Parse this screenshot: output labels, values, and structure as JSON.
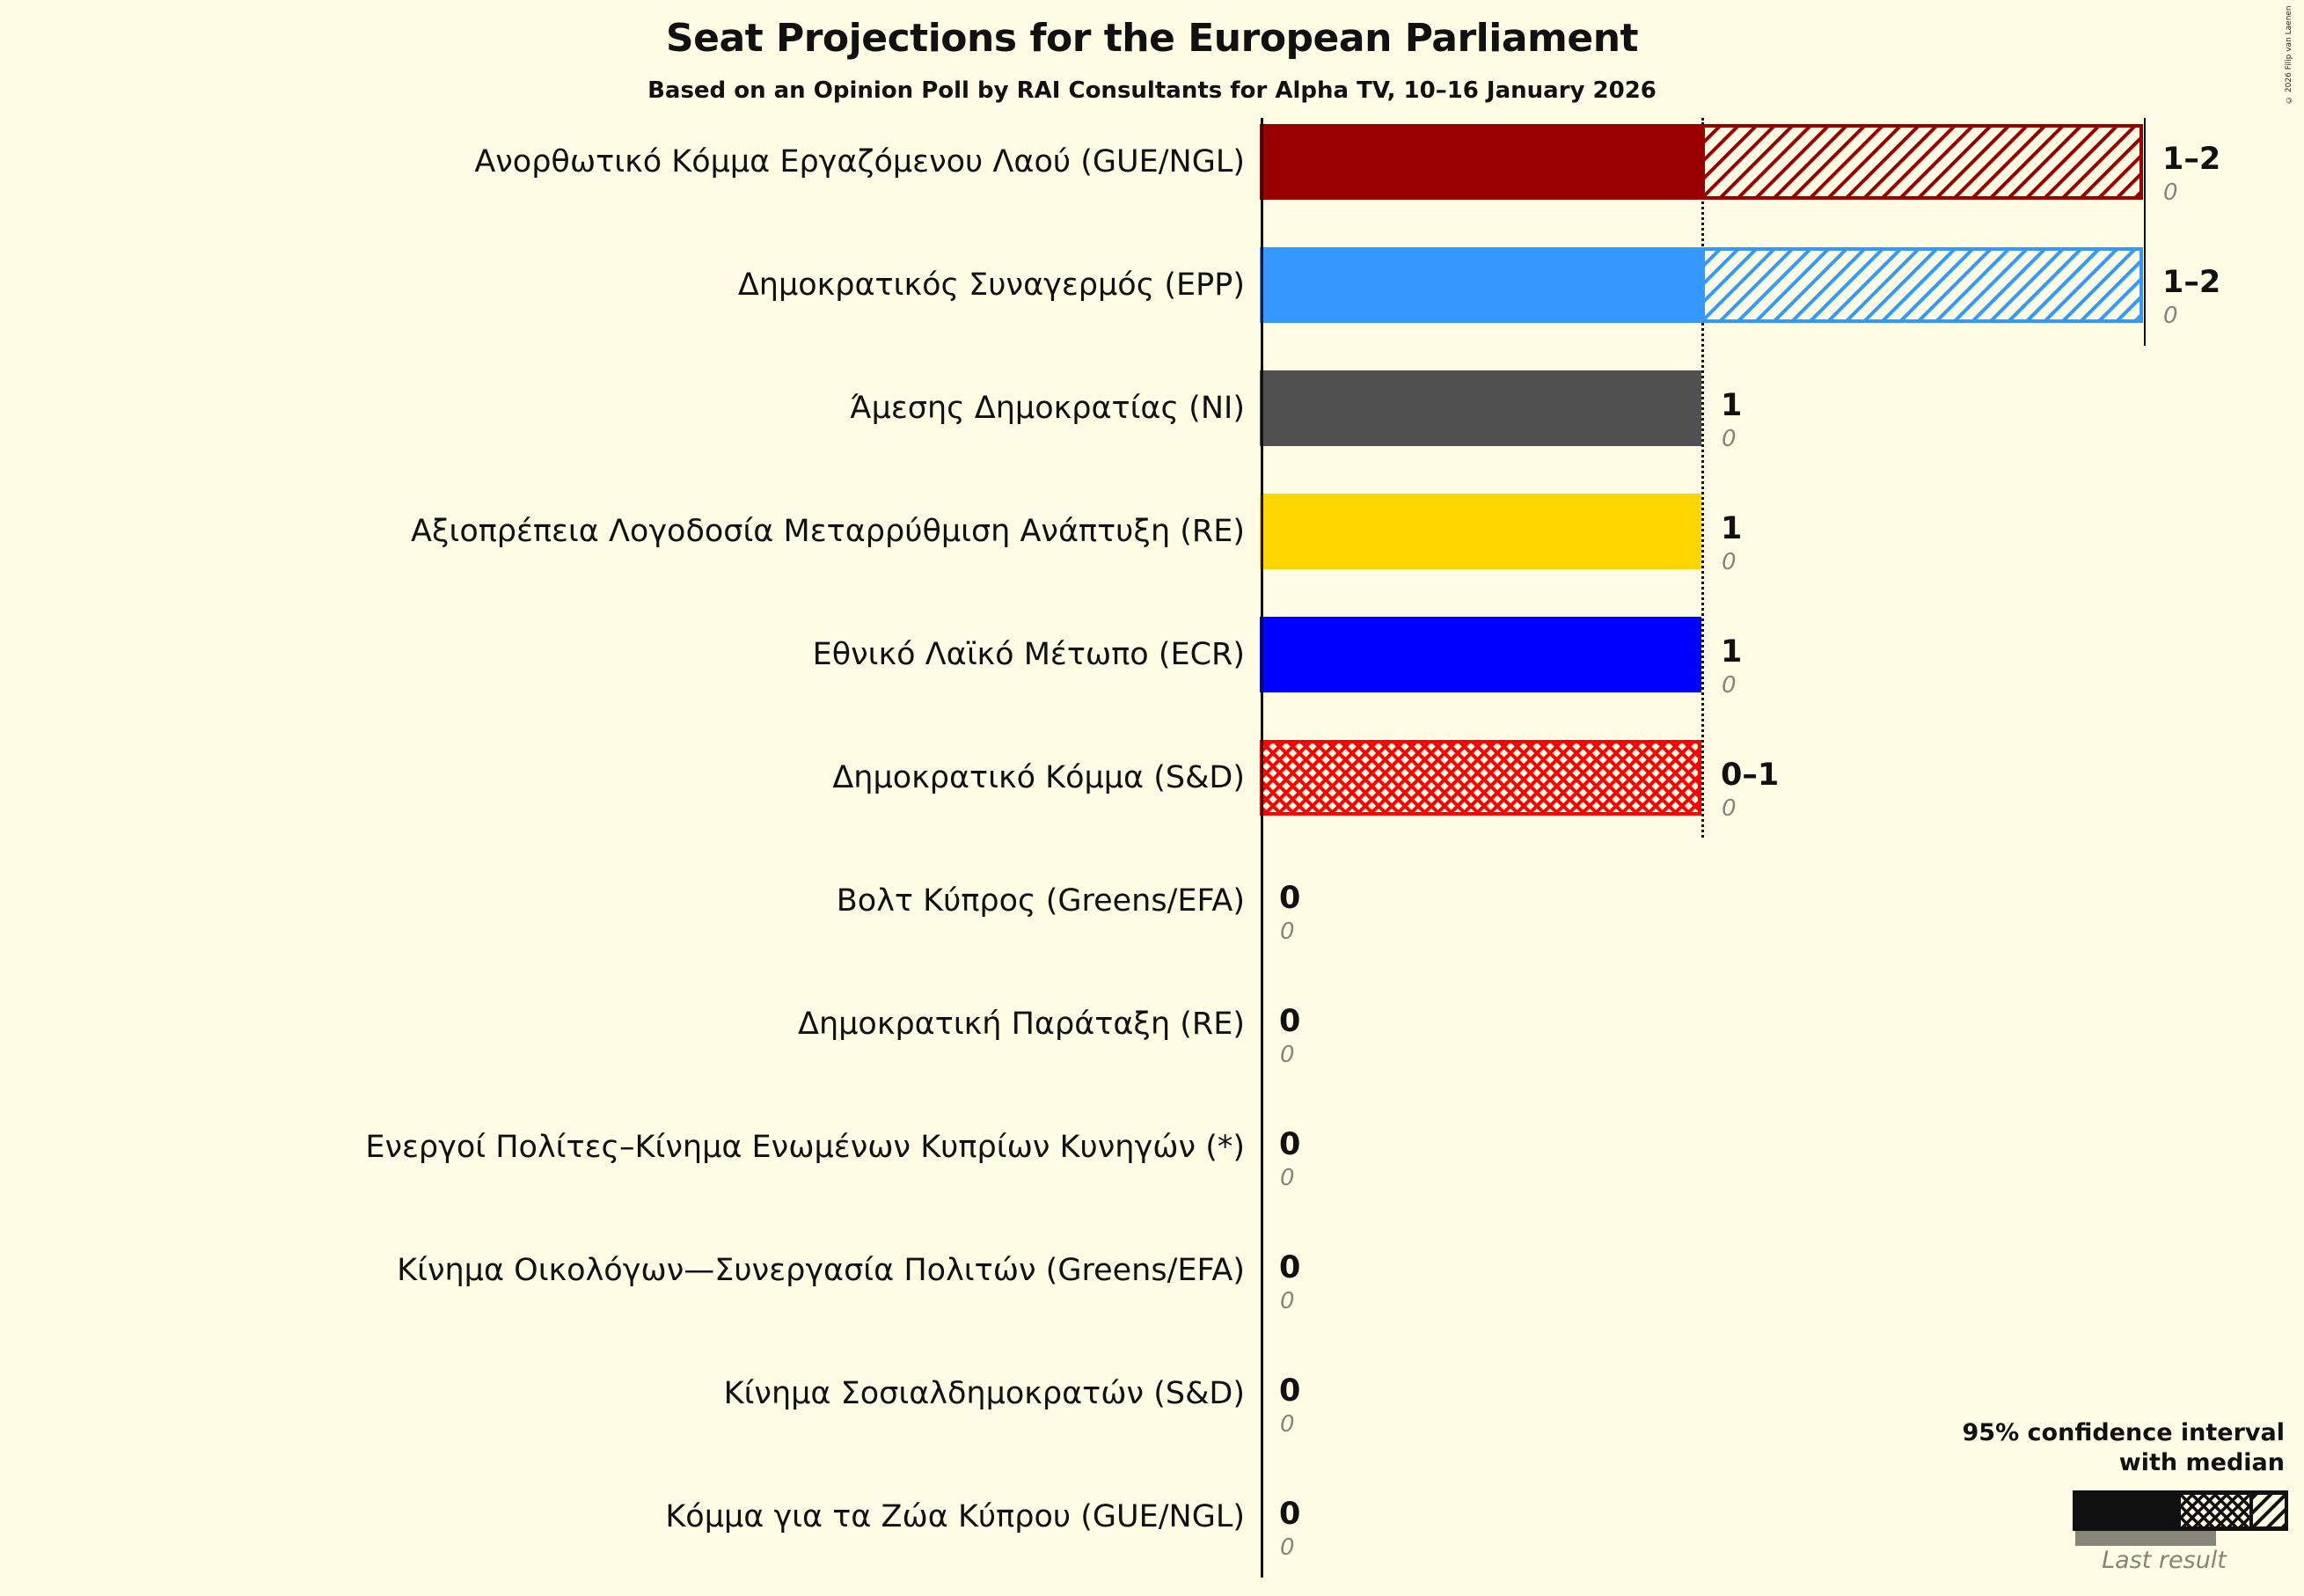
{
  "header": {
    "title": "Seat Projections for the European Parliament",
    "subtitle": "Based on an Opinion Poll by RAI Consultants for Alpha TV, 10–16 January 2026",
    "copyright": "© 2026 Filip van Laenen"
  },
  "legend": {
    "title_line1": "95% confidence interval",
    "title_line2": "with median",
    "last_result_label": "Last result"
  },
  "colors": {
    "background": "#fffce6",
    "last_result": "#85857a",
    "text": "#111111"
  },
  "chart_data": {
    "type": "bar",
    "orientation": "horizontal",
    "title": "Seat Projections for the European Parliament",
    "subtitle": "Based on an Opinion Poll by RAI Consultants for Alpha TV, 10–16 January 2026",
    "xlabel": "",
    "ylabel": "",
    "xlim": [
      0,
      2
    ],
    "grid": false,
    "legend_position": "bottom-right",
    "legend": [
      "95% confidence interval with median",
      "Last result"
    ],
    "categories": [
      "Ανορθωτικό Κόμμα Εργαζόμενου Λαού (GUE/NGL)",
      "Δημοκρατικός Συναγερμός (EPP)",
      "Άμεσης Δημοκρατίας (NI)",
      "Αξιοπρέπεια Λογοδοσία Μεταρρύθμιση Ανάπτυξη (RE)",
      "Εθνικό Λαϊκό Μέτωπο (ECR)",
      "Δημοκρατικό Κόμμα (S&D)",
      "Βολτ Κύπρος (Greens/EFA)",
      "Δημοκρατική Παράταξη (RE)",
      "Ενεργοί Πολίτες–Κίνημα Ενωμένων Κυπρίων Κυνηγών (*)",
      "Κίνημα Οικολόγων—Συνεργασία Πολιτών (Greens/EFA)",
      "Κίνημα Σοσιαλδημοκρατών (S&D)",
      "Κόμμα για τα Ζώα Κύπρου (GUE/NGL)"
    ],
    "series": [
      {
        "name": "CI low",
        "values": [
          1,
          1,
          1,
          1,
          1,
          0,
          0,
          0,
          0,
          0,
          0,
          0
        ]
      },
      {
        "name": "Median",
        "values": [
          1,
          1,
          1,
          1,
          1,
          1,
          0,
          0,
          0,
          0,
          0,
          0
        ]
      },
      {
        "name": "CI high",
        "values": [
          2,
          2,
          1,
          1,
          1,
          1,
          0,
          0,
          0,
          0,
          0,
          0
        ]
      },
      {
        "name": "Last result",
        "values": [
          0,
          0,
          0,
          0,
          0,
          0,
          0,
          0,
          0,
          0,
          0,
          0
        ]
      }
    ],
    "range_labels": [
      "1–2",
      "1–2",
      "1",
      "1",
      "1",
      "0–1",
      "0",
      "0",
      "0",
      "0",
      "0",
      "0"
    ],
    "last_result_labels": [
      "0",
      "0",
      "0",
      "0",
      "0",
      "0",
      "0",
      "0",
      "0",
      "0",
      "0",
      "0"
    ],
    "party_colors": [
      "#990000",
      "#3399ff",
      "#505050",
      "#ffd700",
      "#0000ff",
      "#ff0000",
      "#6db33f",
      "#ffd700",
      "#808080",
      "#6db33f",
      "#ff0000",
      "#990000"
    ]
  }
}
